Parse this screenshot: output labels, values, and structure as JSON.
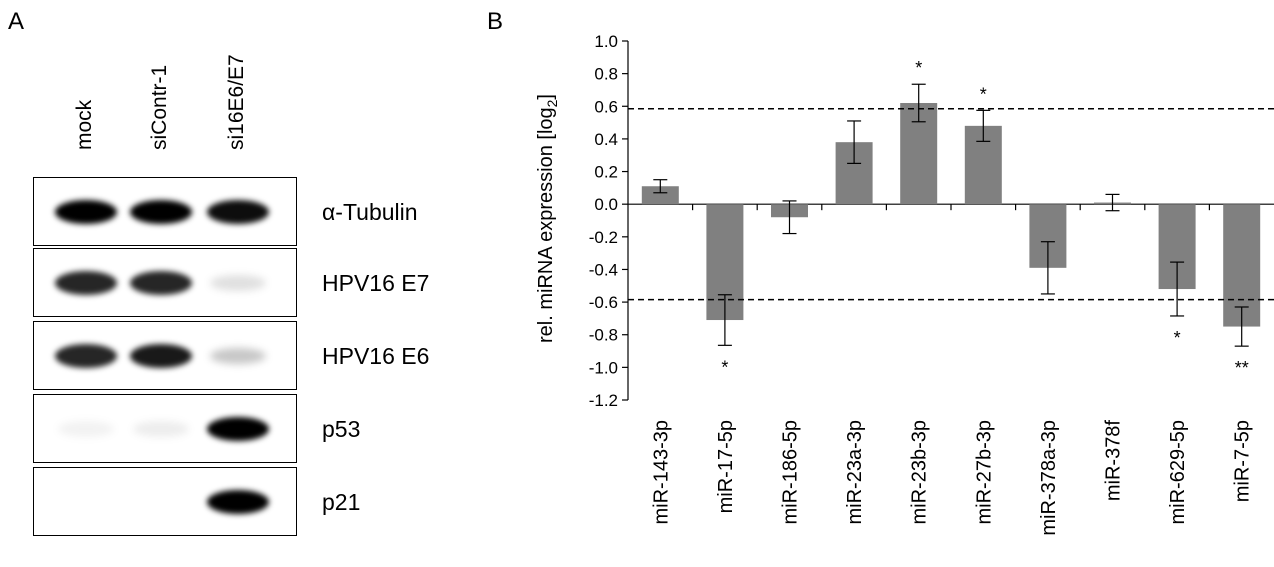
{
  "panel_a": {
    "letter": "A",
    "lanes": [
      "mock",
      "siContr-1",
      "si16E6/E7"
    ],
    "blots": [
      {
        "protein": "α-Tubulin",
        "bands": [
          1.0,
          1.0,
          0.95
        ]
      },
      {
        "protein": "HPV16 E7",
        "bands": [
          0.85,
          0.85,
          0.12
        ]
      },
      {
        "protein": "HPV16 E6",
        "bands": [
          0.85,
          0.9,
          0.22
        ]
      },
      {
        "protein": "p53",
        "bands": [
          0.05,
          0.07,
          1.0
        ]
      },
      {
        "protein": "p21",
        "bands": [
          0.0,
          0.0,
          1.0
        ]
      }
    ]
  },
  "panel_b": {
    "letter": "B"
  },
  "chart_data": {
    "type": "bar",
    "ylabel": "rel. miRNA expression [log",
    "ylabel_sub": "2",
    "ylabel_end": "]",
    "ylim": [
      -1.2,
      1.0
    ],
    "yticks": [
      1.0,
      0.8,
      0.6,
      0.4,
      0.2,
      0.0,
      -0.2,
      -0.4,
      -0.6,
      -0.8,
      -1.0,
      -1.2
    ],
    "ytick_labels": [
      "1.0",
      "0.8",
      "0.6",
      "0.4",
      "0.2",
      "0.0",
      "-0.2",
      "-0.4",
      "-0.6",
      "-0.8",
      "-1.0",
      "-1.2"
    ],
    "categories": [
      "miR-143-3p",
      "miR-17-5p",
      "miR-186-5p",
      "miR-23a-3p",
      "miR-23b-3p",
      "miR-27b-3p",
      "miR-378a-3p",
      "miR-378f",
      "miR-629-5p",
      "miR-7-5p"
    ],
    "values": [
      0.11,
      -0.71,
      -0.08,
      0.38,
      0.62,
      0.48,
      -0.39,
      0.01,
      -0.52,
      -0.75
    ],
    "errors": [
      0.04,
      0.155,
      0.1,
      0.13,
      0.115,
      0.095,
      0.16,
      0.05,
      0.165,
      0.12
    ],
    "significance": [
      "",
      "*",
      "",
      "",
      "*",
      "*",
      "",
      "",
      "*",
      "**"
    ],
    "threshold_lines": [
      0.585,
      -0.585
    ],
    "bar_color": "#808080",
    "grid": false
  }
}
